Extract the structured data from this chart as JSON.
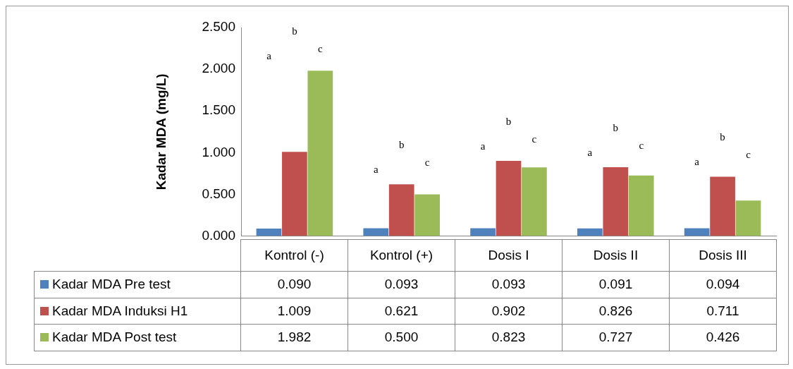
{
  "chart_data": {
    "type": "bar",
    "ylabel": "Kadar MDA (mg/L)",
    "categories": [
      "Kontrol (-)",
      "Kontrol (+)",
      "Dosis I",
      "Dosis II",
      "Dosis III"
    ],
    "series": [
      {
        "name": "Kadar MDA Pre test",
        "color": "#4f81bd",
        "values": [
          0.09,
          0.093,
          0.093,
          0.091,
          0.094
        ],
        "value_labels": [
          "0.090",
          "0.093",
          "0.093",
          "0.091",
          "0.094"
        ]
      },
      {
        "name": "Kadar MDA Induksi H1",
        "color": "#c0504d",
        "values": [
          1.009,
          0.621,
          0.902,
          0.826,
          0.711
        ],
        "value_labels": [
          "1.009",
          "0.621",
          "0.902",
          "0.826",
          "0.711"
        ]
      },
      {
        "name": "Kadar MDA Post test",
        "color": "#9bbb59",
        "values": [
          1.982,
          0.5,
          0.823,
          0.727,
          0.426
        ],
        "value_labels": [
          "1.982",
          "0.500",
          "0.823",
          "0.727",
          "0.426"
        ]
      }
    ],
    "ylim": [
      0,
      2.5
    ],
    "yticks": [
      {
        "value": 0,
        "label": "0.000"
      },
      {
        "value": 0.5,
        "label": "0.500"
      },
      {
        "value": 1,
        "label": "1.000"
      },
      {
        "value": 1.5,
        "label": "1.500"
      },
      {
        "value": 2,
        "label": "2.000"
      },
      {
        "value": 2.5,
        "label": "2.500"
      }
    ],
    "grid": false,
    "legend": "bottom",
    "data_labels": true,
    "annotations": [
      "a",
      "b",
      "c",
      "a",
      "b",
      "c",
      "a",
      "b",
      "c",
      "a",
      "b",
      "c",
      "a",
      "b",
      "c"
    ]
  }
}
